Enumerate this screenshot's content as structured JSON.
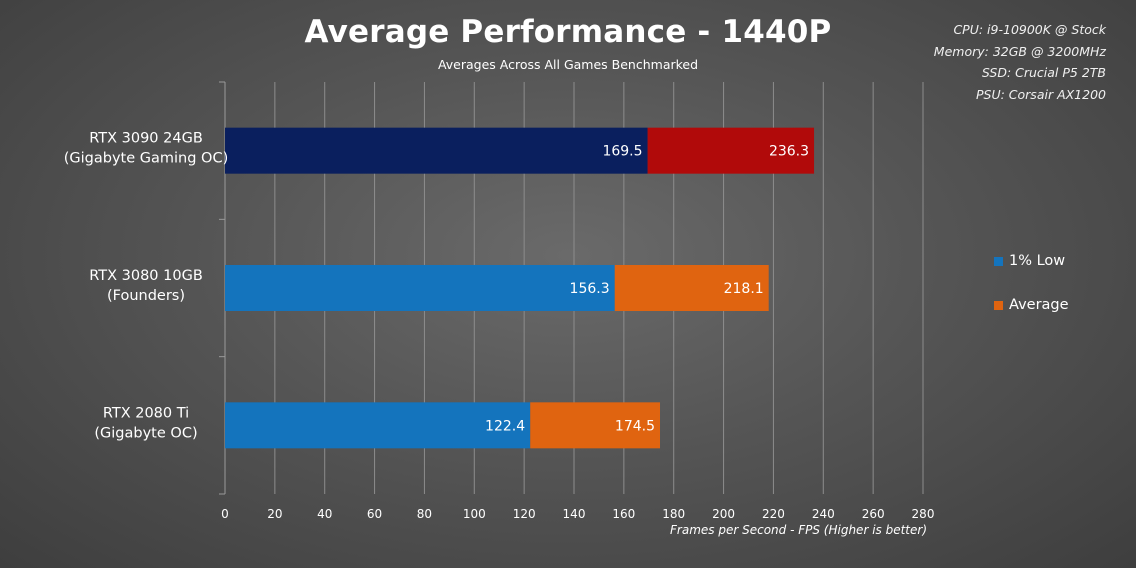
{
  "chart_data": {
    "type": "bar",
    "orientation": "horizontal",
    "stacked_overlay": true,
    "title": "Average Performance - 1440P",
    "subtitle": "Averages Across All Games Benchmarked",
    "xlabel": "Frames per Second - FPS (Higher is better)",
    "ylabel": "",
    "xlim": [
      0,
      280
    ],
    "xticks": [
      0,
      20,
      40,
      60,
      80,
      100,
      120,
      140,
      160,
      180,
      200,
      220,
      240,
      260,
      280
    ],
    "grid": "vertical",
    "legend_position": "right",
    "categories": [
      [
        "RTX 3090 24GB",
        "(Gigabyte Gaming OC)"
      ],
      [
        "RTX 3080 10GB",
        "(Founders)"
      ],
      [
        "RTX 2080 Ti",
        "(Gigabyte OC)"
      ]
    ],
    "series": [
      {
        "name": "1% Low",
        "values": [
          169.5,
          156.3,
          122.4
        ],
        "color": "#1474bd",
        "highlight_colors": [
          "#0a1f5e",
          null,
          null
        ]
      },
      {
        "name": "Average",
        "values": [
          236.3,
          218.1,
          174.5
        ],
        "color": "#e06410",
        "highlight_colors": [
          "#b10a0a",
          null,
          null
        ]
      }
    ]
  },
  "specs": [
    "CPU:  i9-10900K @ Stock",
    "Memory:  32GB @ 3200MHz",
    "SSD:  Crucial P5 2TB",
    "PSU:  Corsair AX1200"
  ]
}
